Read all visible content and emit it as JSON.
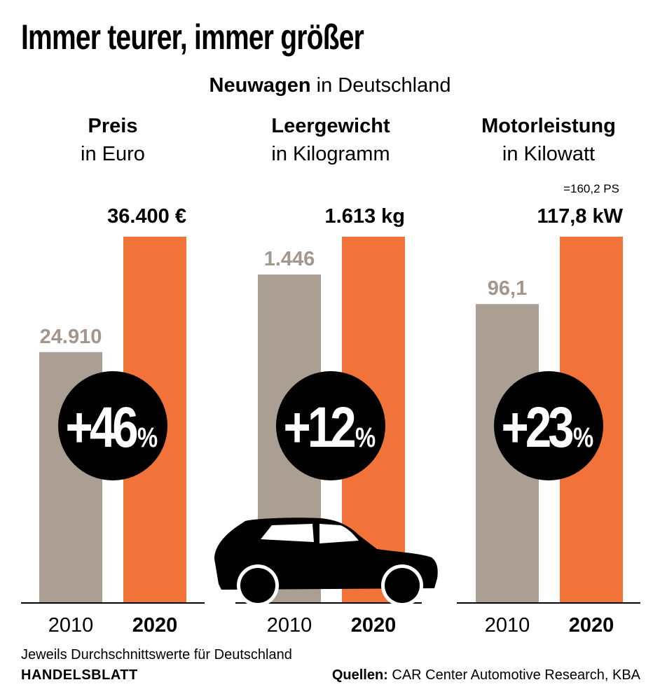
{
  "title": "Immer teurer, immer größer",
  "subtitle": {
    "bold": "Neuwagen",
    "rest": " in Deutschland"
  },
  "colors": {
    "bar_2010": "#ab9f94",
    "bar_2020": "#f2733a",
    "label_2010": "#a3968b",
    "circle": "#000000",
    "car": "#000000"
  },
  "chart_data": [
    {
      "type": "bar",
      "title": "Preis",
      "subtitle": "in Euro",
      "categories": [
        "2010",
        "2020"
      ],
      "values": [
        24910,
        36400
      ],
      "value_labels": [
        "24.910",
        "36.400 €"
      ],
      "change_label": "+46",
      "change_unit": "%",
      "note": "",
      "ylim": [
        0,
        36400
      ]
    },
    {
      "type": "bar",
      "title": "Leergewicht",
      "subtitle": "in Kilogramm",
      "categories": [
        "2010",
        "2020"
      ],
      "values": [
        1446,
        1613
      ],
      "value_labels": [
        "1.446",
        "1.613 kg"
      ],
      "change_label": "+12",
      "change_unit": "%",
      "note": "",
      "ylim": [
        0,
        1613
      ]
    },
    {
      "type": "bar",
      "title": "Motorleistung",
      "subtitle": "in Kilowatt",
      "categories": [
        "2010",
        "2020"
      ],
      "values": [
        96.1,
        117.8
      ],
      "value_labels": [
        "96,1",
        "117,8 kW"
      ],
      "change_label": "+23",
      "change_unit": "%",
      "note": "=160,2 PS",
      "ylim": [
        0,
        117.8
      ]
    }
  ],
  "footnote": "Jeweils Durchschnittswerte für Deutschland",
  "brand": "HANDELSBLATT",
  "sources": {
    "label": "Quellen:",
    "text": " CAR Center Automotive Research, KBA"
  }
}
